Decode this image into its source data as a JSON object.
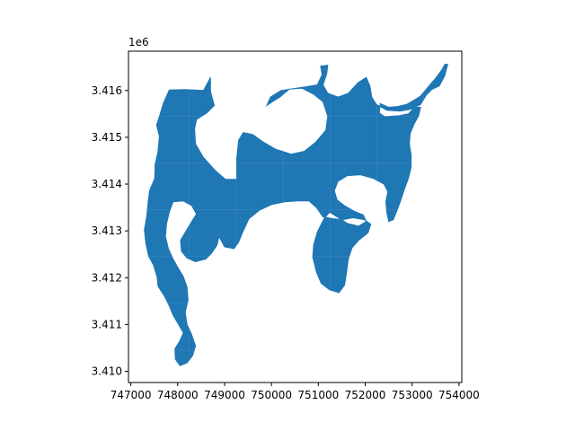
{
  "chart_data": {
    "type": "map",
    "title": "",
    "xlabel": "",
    "ylabel": "",
    "y_offset_label": "1e6",
    "xlim": [
      746950,
      754060
    ],
    "ylim": [
      3409760,
      3416840
    ],
    "x_ticks": [
      {
        "value": 747000,
        "label": "747000"
      },
      {
        "value": 748000,
        "label": "748000"
      },
      {
        "value": 749000,
        "label": "749000"
      },
      {
        "value": 750000,
        "label": "750000"
      },
      {
        "value": 751000,
        "label": "751000"
      },
      {
        "value": 752000,
        "label": "752000"
      },
      {
        "value": 753000,
        "label": "753000"
      },
      {
        "value": 754000,
        "label": "754000"
      }
    ],
    "y_ticks": [
      {
        "value": 3410000,
        "label": "3.410"
      },
      {
        "value": 3411000,
        "label": "3.411"
      },
      {
        "value": 3412000,
        "label": "3.412"
      },
      {
        "value": 3413000,
        "label": "3.413"
      },
      {
        "value": 3414000,
        "label": "3.414"
      },
      {
        "value": 3415000,
        "label": "3.415"
      },
      {
        "value": 3416000,
        "label": "3.416"
      }
    ],
    "fill_color": "#1f77b4",
    "grid": false,
    "region": [
      [
        748050,
        3410120
      ],
      [
        747950,
        3410260
      ],
      [
        747940,
        3410480
      ],
      [
        748040,
        3410640
      ],
      [
        748120,
        3410820
      ],
      [
        748020,
        3411000
      ],
      [
        747900,
        3411200
      ],
      [
        747820,
        3411400
      ],
      [
        747720,
        3411600
      ],
      [
        747580,
        3411820
      ],
      [
        747560,
        3412020
      ],
      [
        747480,
        3412280
      ],
      [
        747380,
        3412460
      ],
      [
        747320,
        3412740
      ],
      [
        747290,
        3413020
      ],
      [
        747340,
        3413320
      ],
      [
        747370,
        3413620
      ],
      [
        747400,
        3413860
      ],
      [
        747510,
        3414120
      ],
      [
        747520,
        3414420
      ],
      [
        747580,
        3414700
      ],
      [
        747610,
        3415020
      ],
      [
        747550,
        3415260
      ],
      [
        747620,
        3415480
      ],
      [
        747700,
        3415740
      ],
      [
        747820,
        3416010
      ],
      [
        748160,
        3416020
      ],
      [
        748550,
        3416000
      ],
      [
        748700,
        3416280
      ],
      [
        748700,
        3415980
      ],
      [
        748780,
        3415680
      ],
      [
        748620,
        3415520
      ],
      [
        748400,
        3415380
      ],
      [
        748360,
        3415180
      ],
      [
        748380,
        3414860
      ],
      [
        748540,
        3414580
      ],
      [
        748810,
        3414280
      ],
      [
        749020,
        3414100
      ],
      [
        749260,
        3414100
      ],
      [
        749260,
        3414550
      ],
      [
        749300,
        3414940
      ],
      [
        749400,
        3415100
      ],
      [
        749600,
        3415060
      ],
      [
        749820,
        3414900
      ],
      [
        750100,
        3414740
      ],
      [
        750420,
        3414640
      ],
      [
        750700,
        3414700
      ],
      [
        750950,
        3414900
      ],
      [
        751160,
        3415150
      ],
      [
        751200,
        3415450
      ],
      [
        751100,
        3415760
      ],
      [
        750900,
        3415920
      ],
      [
        750650,
        3416050
      ],
      [
        750380,
        3416030
      ],
      [
        750180,
        3415860
      ],
      [
        750020,
        3415760
      ],
      [
        749900,
        3415680
      ],
      [
        749980,
        3415860
      ],
      [
        750200,
        3416000
      ],
      [
        750460,
        3416040
      ],
      [
        750740,
        3416080
      ],
      [
        750980,
        3416120
      ],
      [
        751080,
        3416340
      ],
      [
        751050,
        3416520
      ],
      [
        751200,
        3416540
      ],
      [
        751180,
        3416360
      ],
      [
        751100,
        3416120
      ],
      [
        751200,
        3415940
      ],
      [
        751420,
        3415860
      ],
      [
        751640,
        3415940
      ],
      [
        751840,
        3416160
      ],
      [
        752020,
        3416280
      ],
      [
        752100,
        3416100
      ],
      [
        752140,
        3415860
      ],
      [
        752240,
        3415700
      ],
      [
        752460,
        3415580
      ],
      [
        752740,
        3415560
      ],
      [
        752980,
        3415600
      ],
      [
        753180,
        3415700
      ],
      [
        753300,
        3415900
      ],
      [
        753420,
        3416020
      ],
      [
        753580,
        3416100
      ],
      [
        753700,
        3416320
      ],
      [
        753760,
        3416560
      ],
      [
        753700,
        3416560
      ],
      [
        753620,
        3416420
      ],
      [
        753500,
        3416260
      ],
      [
        753380,
        3416120
      ],
      [
        753280,
        3416000
      ],
      [
        753180,
        3415880
      ],
      [
        753020,
        3415780
      ],
      [
        752880,
        3415700
      ],
      [
        752700,
        3415660
      ],
      [
        752500,
        3415640
      ],
      [
        752320,
        3415720
      ],
      [
        752300,
        3415520
      ],
      [
        752420,
        3415440
      ],
      [
        752720,
        3415460
      ],
      [
        752920,
        3415500
      ],
      [
        753060,
        3415640
      ],
      [
        753180,
        3415640
      ],
      [
        753140,
        3415460
      ],
      [
        753040,
        3415280
      ],
      [
        752960,
        3415080
      ],
      [
        752940,
        3414860
      ],
      [
        752980,
        3414620
      ],
      [
        752980,
        3414360
      ],
      [
        752920,
        3414120
      ],
      [
        752840,
        3413900
      ],
      [
        752760,
        3413660
      ],
      [
        752680,
        3413440
      ],
      [
        752600,
        3413240
      ],
      [
        752500,
        3413200
      ],
      [
        752460,
        3413400
      ],
      [
        752440,
        3413620
      ],
      [
        752480,
        3413840
      ],
      [
        752400,
        3414000
      ],
      [
        752180,
        3414120
      ],
      [
        751900,
        3414200
      ],
      [
        751620,
        3414180
      ],
      [
        751420,
        3414060
      ],
      [
        751340,
        3413860
      ],
      [
        751400,
        3413660
      ],
      [
        751560,
        3413540
      ],
      [
        751760,
        3413420
      ],
      [
        751960,
        3413340
      ],
      [
        752020,
        3413200
      ],
      [
        751860,
        3413100
      ],
      [
        751620,
        3413160
      ],
      [
        751400,
        3413300
      ],
      [
        751240,
        3413400
      ],
      [
        751120,
        3413260
      ],
      [
        750980,
        3412980
      ],
      [
        750900,
        3412700
      ],
      [
        750880,
        3412440
      ],
      [
        750960,
        3412120
      ],
      [
        751060,
        3411880
      ],
      [
        751240,
        3411740
      ],
      [
        751440,
        3411680
      ],
      [
        751560,
        3411840
      ],
      [
        751600,
        3412100
      ],
      [
        751640,
        3412400
      ],
      [
        751720,
        3412640
      ],
      [
        751860,
        3412800
      ],
      [
        752060,
        3412960
      ],
      [
        752120,
        3413140
      ],
      [
        751980,
        3413240
      ],
      [
        751740,
        3413280
      ],
      [
        751520,
        3413240
      ],
      [
        751320,
        3413260
      ],
      [
        751100,
        3413300
      ],
      [
        750960,
        3413500
      ],
      [
        750800,
        3413640
      ],
      [
        750560,
        3413640
      ],
      [
        750280,
        3413620
      ],
      [
        750000,
        3413560
      ],
      [
        749740,
        3413440
      ],
      [
        749520,
        3413260
      ],
      [
        749400,
        3413000
      ],
      [
        749300,
        3412760
      ],
      [
        749200,
        3412620
      ],
      [
        749000,
        3412660
      ],
      [
        748880,
        3412880
      ],
      [
        748840,
        3412700
      ],
      [
        748720,
        3412520
      ],
      [
        748600,
        3412400
      ],
      [
        748380,
        3412340
      ],
      [
        748200,
        3412420
      ],
      [
        748080,
        3412560
      ],
      [
        748060,
        3412800
      ],
      [
        748180,
        3413000
      ],
      [
        748300,
        3413200
      ],
      [
        748400,
        3413360
      ],
      [
        748300,
        3413540
      ],
      [
        748120,
        3413640
      ],
      [
        747900,
        3413620
      ],
      [
        747820,
        3413400
      ],
      [
        747760,
        3413140
      ],
      [
        747740,
        3412880
      ],
      [
        747800,
        3412620
      ],
      [
        747900,
        3412400
      ],
      [
        748000,
        3412220
      ],
      [
        748120,
        3412020
      ],
      [
        748200,
        3411800
      ],
      [
        748220,
        3411520
      ],
      [
        748160,
        3411260
      ],
      [
        748200,
        3411000
      ],
      [
        748300,
        3410780
      ],
      [
        748380,
        3410540
      ],
      [
        748320,
        3410340
      ],
      [
        748200,
        3410180
      ]
    ]
  }
}
